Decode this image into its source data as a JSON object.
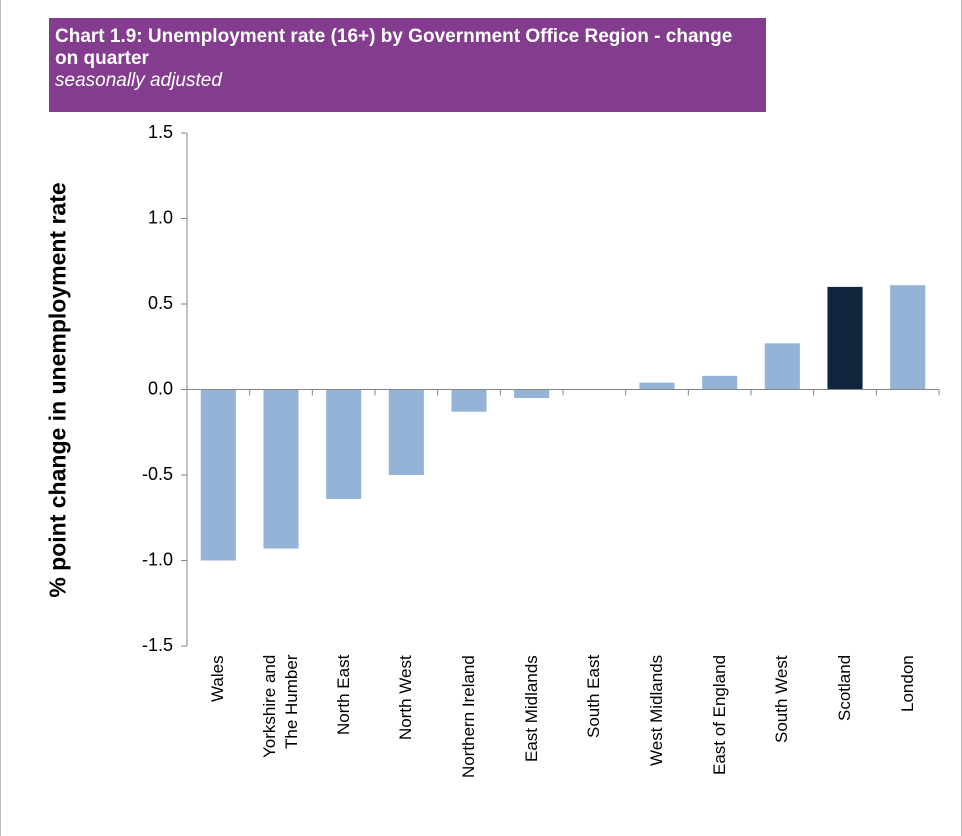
{
  "chart_data": {
    "type": "bar",
    "title": "Chart 1.9: Unemployment rate (16+) by Government Office Region - change on quarter",
    "subtitle": "seasonally adjusted",
    "y_label": "% point change in unemployment rate",
    "categories": [
      "Wales",
      "Yorkshire and The Humber",
      "North East",
      "North West",
      "Northern Ireland",
      "East Midlands",
      "South East",
      "West Midlands",
      "East of England",
      "South West",
      "Scotland",
      "London"
    ],
    "values": [
      -1.0,
      -0.93,
      -0.64,
      -0.5,
      -0.13,
      -0.05,
      0,
      0.04,
      0.08,
      0.27,
      0.6,
      0.61
    ],
    "colors": [
      "#95b3d7",
      "#95b3d7",
      "#95b3d7",
      "#95b3d7",
      "#95b3d7",
      "#95b3d7",
      "#95b3d7",
      "#95b3d7",
      "#95b3d7",
      "#95b3d7",
      "#10243e",
      "#95b3d7"
    ],
    "ylim": [
      -1.5,
      1.5
    ],
    "yticks": [
      {
        "value": -1.5,
        "label": "-1.5"
      },
      {
        "value": -1,
        "label": "-1.0"
      },
      -0.5,
      {
        "value": 0,
        "label": "0.0"
      },
      0.5,
      {
        "value": 1,
        "label": "1.0"
      },
      1.5
    ],
    "grid": false
  }
}
